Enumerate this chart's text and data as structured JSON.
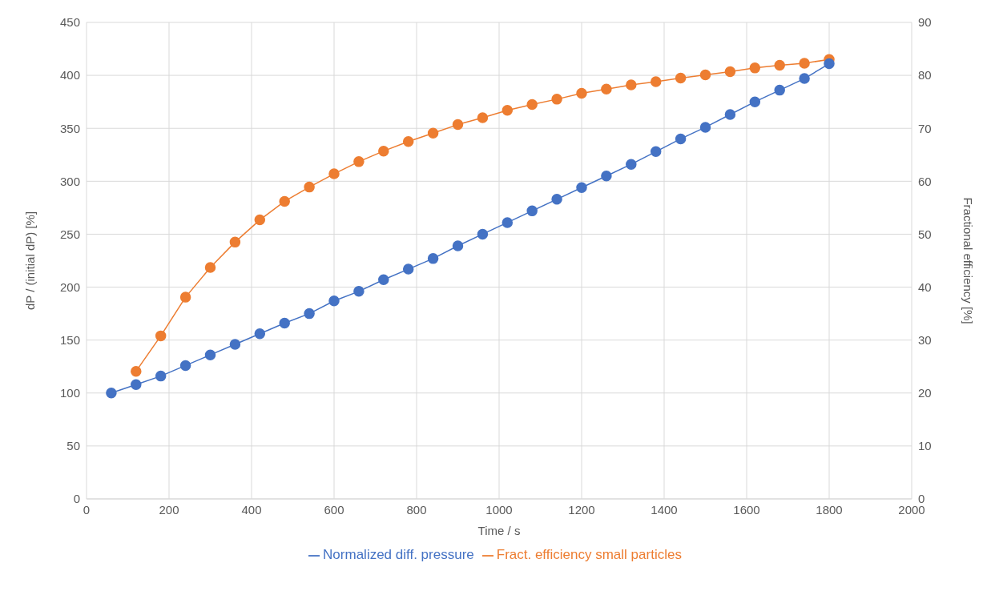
{
  "chart_data": {
    "type": "line",
    "xlabel": "Time / s",
    "ylabel": "dP / (initial dP) [%]",
    "y2label": "Fractional efficiency [%]",
    "x": [
      60,
      120,
      180,
      240,
      300,
      360,
      420,
      480,
      540,
      600,
      660,
      720,
      780,
      840,
      900,
      960,
      1020,
      1080,
      1140,
      1200,
      1260,
      1320,
      1380,
      1440,
      1500,
      1560,
      1620,
      1680,
      1740,
      1800
    ],
    "series": [
      {
        "name": "Normalized diff. pressure",
        "color": "#4472c4",
        "values": [
          100,
          108,
          116,
          126,
          136,
          146,
          156,
          166,
          175,
          187,
          196,
          207,
          217,
          227,
          239,
          250,
          261,
          272,
          283,
          294,
          305,
          316,
          328,
          340,
          351,
          363,
          375,
          386,
          397,
          411
        ]
      },
      {
        "name": "Fract. efficiency small particles",
        "color": "#ed7d31",
        "axis": "y2",
        "values": [
          null,
          24.1,
          30.8,
          38.1,
          43.7,
          48.5,
          52.7,
          56.2,
          58.9,
          61.4,
          63.7,
          65.7,
          67.5,
          69.1,
          70.7,
          72,
          73.4,
          74.5,
          75.5,
          76.6,
          77.4,
          78.2,
          78.8,
          79.5,
          80.1,
          80.7,
          81.4,
          81.9,
          82.3,
          83
        ]
      }
    ],
    "xlim": [
      0,
      2000
    ],
    "xticks": [
      0,
      200,
      400,
      600,
      800,
      1000,
      1200,
      1400,
      1600,
      1800,
      2000
    ],
    "ylim": [
      0,
      450
    ],
    "yticks": [
      0,
      50,
      100,
      150,
      200,
      250,
      300,
      350,
      400,
      450
    ],
    "y2lim": [
      0,
      90
    ],
    "y2ticks": [
      0,
      10,
      20,
      30,
      40,
      50,
      60,
      70,
      80,
      90
    ],
    "grid": true,
    "legend": "bottom",
    "marker": "circle",
    "line_style": "solid"
  }
}
